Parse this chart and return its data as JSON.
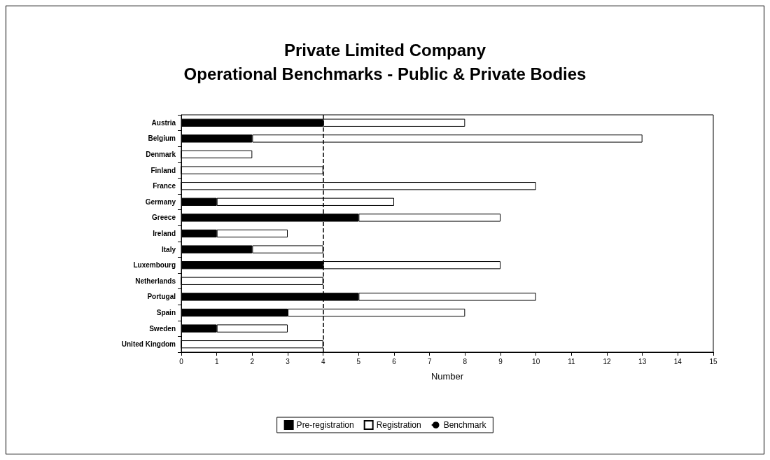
{
  "chart_data": {
    "type": "bar",
    "orientation": "horizontal",
    "stacked": true,
    "title": "Private Limited Company\nOperational Benchmarks - Public & Private Bodies",
    "xlabel": "Number",
    "categories": [
      "Austria",
      "Belgium",
      "Denmark",
      "Finland",
      "France",
      "Germany",
      "Greece",
      "Ireland",
      "Italy",
      "Luxembourg",
      "Netherlands",
      "Portugal",
      "Spain",
      "Sweden",
      "United Kingdom"
    ],
    "series": [
      {
        "name": "Pre-registration",
        "color": "#000000",
        "values": [
          4,
          2,
          0,
          0,
          0,
          1,
          5,
          1,
          2,
          4,
          0,
          5,
          3,
          1,
          0
        ]
      },
      {
        "name": "Registration",
        "color": "#ffffff",
        "values": [
          4,
          11,
          2,
          4,
          10,
          5,
          4,
          2,
          2,
          5,
          4,
          5,
          5,
          2,
          4
        ]
      }
    ],
    "ref_lines": [
      {
        "axis": "x",
        "value": 4,
        "label": "Benchmark",
        "color": "#000000",
        "line_style": "dashed"
      }
    ],
    "xlim": [
      0,
      15
    ],
    "xticks": [
      0,
      1,
      2,
      3,
      4,
      5,
      6,
      7,
      8,
      9,
      10,
      11,
      12,
      13,
      14,
      15
    ],
    "grid": false,
    "legend": "bottom"
  }
}
